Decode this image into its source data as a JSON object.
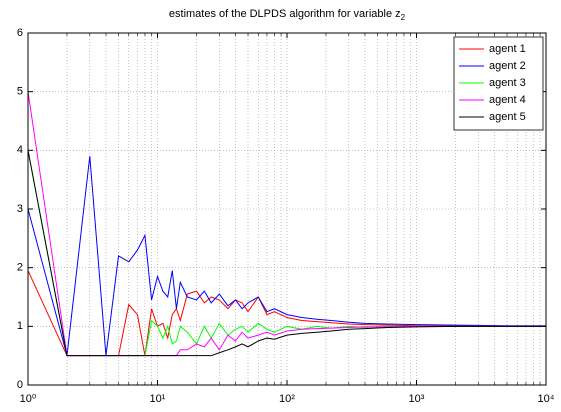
{
  "chart_data": {
    "type": "line",
    "title": "estimates of the DLPDS algorithm for variable z",
    "title_subscript": "2",
    "x": [
      1,
      2,
      3,
      4,
      5,
      6,
      7,
      8,
      9,
      10,
      11,
      12,
      13,
      14,
      15,
      17,
      20,
      23,
      26,
      30,
      35,
      40,
      45,
      50,
      60,
      70,
      80,
      100,
      130,
      170,
      220,
      300,
      400,
      600,
      1000,
      2000,
      5000,
      10000
    ],
    "series": [
      {
        "name": "agent 1",
        "color": "#ff0000",
        "values": [
          1.95,
          0.5,
          0.5,
          0.5,
          0.5,
          1.37,
          1.2,
          0.5,
          1.3,
          1.0,
          1.05,
          0.8,
          1.2,
          1.3,
          1.1,
          1.55,
          1.6,
          1.4,
          1.5,
          1.45,
          1.3,
          1.45,
          1.4,
          1.25,
          1.5,
          1.2,
          1.25,
          1.15,
          1.1,
          1.08,
          1.06,
          1.04,
          1.03,
          1.02,
          1.01,
          1.01,
          1.0,
          1.0
        ]
      },
      {
        "name": "agent 2",
        "color": "#0000ff",
        "values": [
          3.0,
          0.5,
          3.9,
          0.5,
          2.2,
          2.1,
          2.3,
          2.55,
          1.45,
          1.85,
          1.6,
          1.5,
          1.95,
          1.3,
          1.75,
          1.5,
          1.45,
          1.6,
          1.4,
          1.55,
          1.35,
          1.45,
          1.3,
          1.4,
          1.5,
          1.25,
          1.3,
          1.2,
          1.15,
          1.12,
          1.1,
          1.07,
          1.05,
          1.04,
          1.03,
          1.02,
          1.01,
          1.01
        ]
      },
      {
        "name": "agent 3",
        "color": "#00ff00",
        "values": [
          4.0,
          0.5,
          0.5,
          0.5,
          0.5,
          0.5,
          0.5,
          0.5,
          1.1,
          1.0,
          0.8,
          1.0,
          0.7,
          0.75,
          1.0,
          0.9,
          0.7,
          1.0,
          0.8,
          1.05,
          0.85,
          0.95,
          1.0,
          0.9,
          1.05,
          0.95,
          0.9,
          1.0,
          0.95,
          1.0,
          0.97,
          1.0,
          0.98,
          1.0,
          1.0,
          1.0,
          1.0,
          1.0
        ]
      },
      {
        "name": "agent 4",
        "color": "#ff00ff",
        "values": [
          5.0,
          0.5,
          0.5,
          0.5,
          0.5,
          0.5,
          0.5,
          0.5,
          0.5,
          0.5,
          0.5,
          0.5,
          0.5,
          0.5,
          0.6,
          0.6,
          0.7,
          0.65,
          0.8,
          0.6,
          0.85,
          0.75,
          0.9,
          0.8,
          0.85,
          0.9,
          0.85,
          0.92,
          0.95,
          0.96,
          0.97,
          0.98,
          0.99,
          0.99,
          1.0,
          1.0,
          1.0,
          1.0
        ]
      },
      {
        "name": "agent 5",
        "color": "#000000",
        "values": [
          4.0,
          0.5,
          0.5,
          0.5,
          0.5,
          0.5,
          0.5,
          0.5,
          0.5,
          0.5,
          0.5,
          0.5,
          0.5,
          0.5,
          0.5,
          0.5,
          0.5,
          0.5,
          0.5,
          0.55,
          0.6,
          0.65,
          0.7,
          0.65,
          0.75,
          0.8,
          0.78,
          0.85,
          0.88,
          0.9,
          0.92,
          0.95,
          0.96,
          0.98,
          0.99,
          1.0,
          1.0,
          1.0
        ]
      }
    ],
    "xlim": [
      1,
      10000
    ],
    "xticks": [
      {
        "value": 1,
        "label": "10⁰"
      },
      {
        "value": 10,
        "label": "10¹"
      },
      {
        "value": 100,
        "label": "10²"
      },
      {
        "value": 1000,
        "label": "10³"
      },
      {
        "value": 10000,
        "label": "10⁴"
      }
    ],
    "ylim": [
      0,
      6
    ],
    "yticks": [
      0,
      1,
      2,
      3,
      4,
      5,
      6
    ],
    "xscale": "log",
    "grid": true,
    "legend": "upper right"
  }
}
